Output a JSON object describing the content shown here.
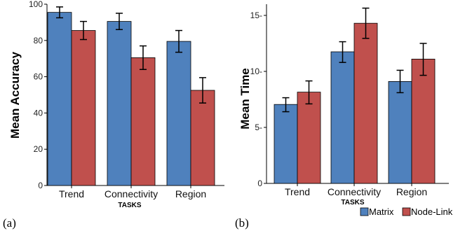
{
  "colors": {
    "matrix": "#4f81bd",
    "node_link": "#c0504d",
    "axis": "#000000"
  },
  "legend": [
    {
      "name": "Matrix",
      "color": "#4f81bd"
    },
    {
      "name": "Node-Link",
      "color": "#c0504d"
    }
  ],
  "chart_data": [
    {
      "type": "bar",
      "panel_label": "(a)",
      "categories": [
        "Trend",
        "Connectivity",
        "Region"
      ],
      "series": [
        {
          "name": "Matrix",
          "values": [
            95.5,
            90.5,
            79.5
          ],
          "error_low": [
            92.5,
            86,
            73.5
          ],
          "error_high": [
            98.5,
            95,
            85.5
          ]
        },
        {
          "name": "Node-Link",
          "values": [
            85.5,
            70.5,
            52.5
          ],
          "error_low": [
            80.5,
            64,
            45.5
          ],
          "error_high": [
            90.5,
            77,
            59.5
          ]
        }
      ],
      "xlabel": "TASKS",
      "ylabel": "Mean Accuracy",
      "ylim": [
        0,
        100
      ],
      "yticks": [
        0,
        20,
        40,
        60,
        80,
        100
      ],
      "grid": false
    },
    {
      "type": "bar",
      "panel_label": "(b)",
      "categories": [
        "Trend",
        "Connectivity",
        "Region"
      ],
      "series": [
        {
          "name": "Matrix",
          "values": [
            7.05,
            11.75,
            9.1
          ],
          "error_low": [
            6.4,
            10.8,
            8.1
          ],
          "error_high": [
            7.65,
            12.65,
            10.1
          ]
        },
        {
          "name": "Node-Link",
          "values": [
            8.15,
            14.3,
            11.1
          ],
          "error_low": [
            7.1,
            12.95,
            9.65
          ],
          "error_high": [
            9.15,
            15.65,
            12.5
          ]
        }
      ],
      "xlabel": "TASKS",
      "ylabel": "Mean Time",
      "ylim": [
        0,
        16
      ],
      "yticks": [
        0,
        5,
        10,
        15
      ],
      "ytick_labels": [
        "0",
        "5-",
        "10-",
        "15-"
      ],
      "grid": false
    }
  ]
}
